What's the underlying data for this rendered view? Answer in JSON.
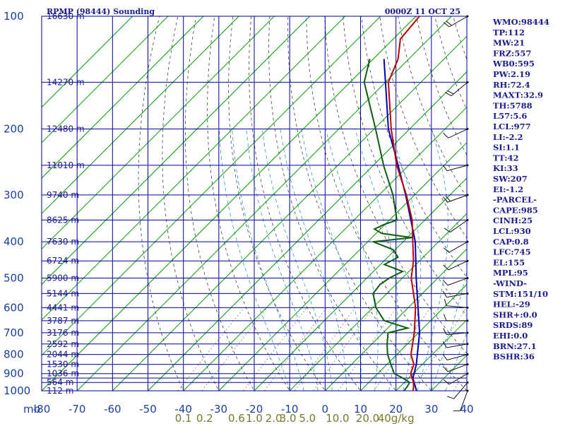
{
  "header": {
    "title": "RPMP (98444) Sounding",
    "datetime": "0000Z 11 OCT 25"
  },
  "chart_data": {
    "type": "skew-t",
    "title": "RPMP (98444) Sounding",
    "valid_time": "0000Z 11 OCT 25",
    "xlabel": "mb",
    "temp_range": [
      -80,
      40
    ],
    "pressure_range": [
      1000,
      100
    ],
    "pressure_ticks": [
      "100",
      "200",
      "300",
      "400",
      "500",
      "600",
      "700",
      "800",
      "900",
      "1000"
    ],
    "pressure_levels": [
      100,
      150,
      200,
      250,
      300,
      350,
      400,
      450,
      500,
      550,
      600,
      650,
      700,
      750,
      800,
      850,
      900,
      925,
      950,
      1000
    ],
    "temperature_ticks": [
      "-80",
      "-70",
      "-60",
      "-50",
      "-40",
      "-30",
      "-20",
      "-10",
      "0",
      "10",
      "20",
      "30",
      "40"
    ],
    "mixing_ratio_labels": [
      {
        "label": "0.1",
        "t": -40
      },
      {
        "label": "0.2",
        "t": -34
      },
      {
        "label": "0.6",
        "t": -25
      },
      {
        "label": "1.0",
        "t": -20
      },
      {
        "label": "2.0",
        "t": -14.5
      },
      {
        "label": "3.0",
        "t": -10.5
      },
      {
        "label": "5.0",
        "t": -5
      },
      {
        "label": "10.0",
        "t": 3.5
      },
      {
        "label": "20.0",
        "t": 12
      },
      {
        "label": "40g/kg",
        "t": 20
      }
    ],
    "heights": [
      {
        "p": 100,
        "label": "16630 m"
      },
      {
        "p": 150,
        "label": "14270 m"
      },
      {
        "p": 200,
        "label": "12480 m"
      },
      {
        "p": 250,
        "label": "11010 m"
      },
      {
        "p": 300,
        "label": "9740 m"
      },
      {
        "p": 350,
        "label": "8625 m"
      },
      {
        "p": 400,
        "label": "7630 m"
      },
      {
        "p": 450,
        "label": "6724 m"
      },
      {
        "p": 500,
        "label": "5900 m"
      },
      {
        "p": 550,
        "label": "5144 m"
      },
      {
        "p": 600,
        "label": "4441 m"
      },
      {
        "p": 650,
        "label": "3787 m"
      },
      {
        "p": 700,
        "label": "3176 m"
      },
      {
        "p": 750,
        "label": "2592 m"
      },
      {
        "p": 800,
        "label": "2044 m"
      },
      {
        "p": 850,
        "label": "1530 m"
      },
      {
        "p": 900,
        "label": "1036 m"
      },
      {
        "p": 950,
        "label": "564 m"
      },
      {
        "p": 1000,
        "label": "112 m"
      }
    ],
    "series": [
      {
        "name": "Parcel",
        "color": "#0000b4",
        "points": [
          [
            1000,
            25.8
          ],
          [
            925,
            21.2
          ],
          [
            850,
            18.3
          ],
          [
            700,
            10.3
          ],
          [
            500,
            -6.1
          ],
          [
            400,
            -16.6
          ],
          [
            300,
            -32.5
          ],
          [
            250,
            -43
          ],
          [
            200,
            -56
          ],
          [
            150,
            -70
          ],
          [
            130,
            -77
          ]
        ]
      },
      {
        "name": "Temperature",
        "color": "#c00000",
        "points": [
          [
            1000,
            24.8
          ],
          [
            975,
            23.8
          ],
          [
            950,
            22.6
          ],
          [
            925,
            21
          ],
          [
            900,
            19.3
          ],
          [
            850,
            17.6
          ],
          [
            800,
            14
          ],
          [
            700,
            8.8
          ],
          [
            600,
            2.1
          ],
          [
            500,
            -7.5
          ],
          [
            450,
            -11.7
          ],
          [
            400,
            -17.3
          ],
          [
            350,
            -23.6
          ],
          [
            300,
            -32.3
          ],
          [
            250,
            -43.4
          ],
          [
            200,
            -55.2
          ],
          [
            150,
            -69.2
          ],
          [
            130,
            -73
          ],
          [
            115,
            -78
          ],
          [
            100,
            -79
          ]
        ]
      },
      {
        "name": "Dewpoint",
        "color": "#0e5e0e",
        "points": [
          [
            1000,
            22.3
          ],
          [
            975,
            22
          ],
          [
            950,
            21.5
          ],
          [
            925,
            18.4
          ],
          [
            900,
            14.7
          ],
          [
            850,
            11.1
          ],
          [
            800,
            7.4
          ],
          [
            750,
            4.3
          ],
          [
            700,
            1.4
          ],
          [
            680,
            5.6
          ],
          [
            650,
            -3.1
          ],
          [
            600,
            -9.1
          ],
          [
            550,
            -13.9
          ],
          [
            520,
            -14.5
          ],
          [
            500,
            -13.7
          ],
          [
            480,
            -11.8
          ],
          [
            460,
            -18.9
          ],
          [
            440,
            -17.1
          ],
          [
            420,
            -20.6
          ],
          [
            400,
            -28.5
          ],
          [
            390,
            -18.7
          ],
          [
            380,
            -28.4
          ],
          [
            370,
            -31.7
          ],
          [
            360,
            -30.3
          ],
          [
            350,
            -27.9
          ],
          [
            300,
            -36.1
          ],
          [
            250,
            -47.1
          ],
          [
            200,
            -59.6
          ],
          [
            150,
            -76
          ],
          [
            130,
            -81
          ]
        ]
      }
    ],
    "wind_barbs": [
      {
        "p": 1000,
        "dir": 200,
        "spd": 5
      },
      {
        "p": 950,
        "dir": 220,
        "spd": 10
      },
      {
        "p": 900,
        "dir": 240,
        "spd": 10
      },
      {
        "p": 850,
        "dir": 250,
        "spd": 10
      },
      {
        "p": 800,
        "dir": 255,
        "spd": 10
      },
      {
        "p": 750,
        "dir": 260,
        "spd": 10
      },
      {
        "p": 700,
        "dir": 265,
        "spd": 10
      },
      {
        "p": 650,
        "dir": 270,
        "spd": 10
      },
      {
        "p": 600,
        "dir": 275,
        "spd": 10
      },
      {
        "p": 550,
        "dir": 260,
        "spd": 10
      },
      {
        "p": 500,
        "dir": 250,
        "spd": 10
      },
      {
        "p": 450,
        "dir": 245,
        "spd": 10
      },
      {
        "p": 400,
        "dir": 240,
        "spd": 10
      },
      {
        "p": 350,
        "dir": 235,
        "spd": 10
      },
      {
        "p": 300,
        "dir": 250,
        "spd": 15
      },
      {
        "p": 250,
        "dir": 255,
        "spd": 10
      },
      {
        "p": 200,
        "dir": 245,
        "spd": 10
      },
      {
        "p": 150,
        "dir": 230,
        "spd": 20
      },
      {
        "p": 100,
        "dir": 240,
        "spd": 15
      }
    ],
    "indices": [
      "WMO:98444",
      "TP:112",
      "MW:21",
      "FRZ:557",
      "WB0:595",
      "PW:2.19",
      "RH:72.4",
      "MAXT:32.9",
      "TH:5788",
      "L57:5.6",
      "LCL:977",
      "LI:-2.2",
      "SI:1.1",
      "TT:42",
      "KI:33",
      "SW:207",
      "EI:-1.2",
      "-PARCEL-",
      "CAPE:985",
      "CINH:25",
      "LCL:930",
      "CAP:0.8",
      "LFC:745",
      "EL:155",
      "MPL:95",
      "-WIND-",
      "STM:151/10",
      "HEL:-29",
      "SHR+:0.0",
      "SRDS:89",
      "EHI:0.0",
      "BRN:27.1",
      "BSHR:36"
    ]
  },
  "colors": {
    "isobar": "#0000a0",
    "isotherm": "#00a000",
    "dry_adiabat": "#404040",
    "moist_adiabat": "#3399cc",
    "mixing_ratio": "#808080"
  }
}
